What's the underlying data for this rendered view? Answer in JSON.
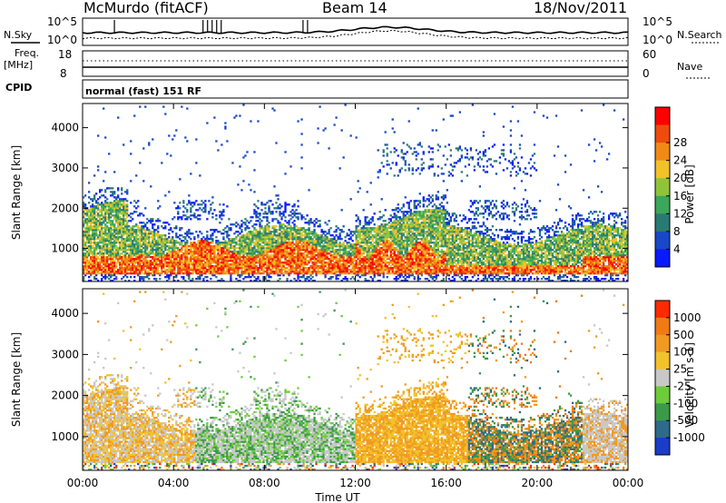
{
  "header": {
    "station": "McMurdo (fitACF)",
    "beam": "Beam 14",
    "date": "18/Nov/2011"
  },
  "top_panels": {
    "nsky_label": "N.Sky",
    "nsearch_label": "N.Search",
    "noise_ticks": [
      "10^5",
      "10^0"
    ],
    "freq_label": "Freq.",
    "freq_unit": "[MHz]",
    "freq_ticks": [
      "18",
      "8"
    ],
    "nave_label": "Nave",
    "nave_ticks": [
      "60",
      "0"
    ],
    "cpid_label": "CPID",
    "cpid_value": "normal (fast) 151 RF"
  },
  "chart_data": [
    {
      "type": "heatmap",
      "panel": "power",
      "ylabel": "Slant Range [km]",
      "yticks": [
        1000,
        2000,
        3000,
        4000
      ],
      "ylim": [
        180,
        4600
      ],
      "xlabel": "Time UT",
      "xticks": [
        "00:00",
        "04:00",
        "08:00",
        "12:00",
        "16:00",
        "20:00",
        "00:00"
      ],
      "xlim_hours": [
        0,
        24
      ],
      "colorbar": {
        "label": "Power [dB]",
        "ticks": [
          4,
          8,
          12,
          16,
          20,
          24,
          28
        ],
        "colors": [
          "#0a1aff",
          "#1848c8",
          "#2a7a74",
          "#3ba75a",
          "#8fc43a",
          "#f2c22a",
          "#f08a14",
          "#ee4c0c",
          "#ff0000"
        ]
      }
    },
    {
      "type": "heatmap",
      "panel": "velocity",
      "ylabel": "Slant Range [km]",
      "yticks": [
        1000,
        2000,
        3000,
        4000
      ],
      "ylim": [
        180,
        4600
      ],
      "xlabel": "Time UT",
      "xticks": [
        "00:00",
        "04:00",
        "08:00",
        "12:00",
        "16:00",
        "20:00",
        "00:00"
      ],
      "xlim_hours": [
        0,
        24
      ],
      "colorbar": {
        "label": "Velocity [m s-1]",
        "ticks": [
          "1000",
          "500",
          "100",
          "25",
          "-25",
          "-100",
          "-500",
          "-1000"
        ],
        "colors": [
          "#1a3cc8",
          "#2e6a8a",
          "#3a9a4a",
          "#6ccc3a",
          "#c8c8c8",
          "#f2c22a",
          "#f09a22",
          "#f07a14",
          "#ff2a00"
        ]
      }
    }
  ]
}
